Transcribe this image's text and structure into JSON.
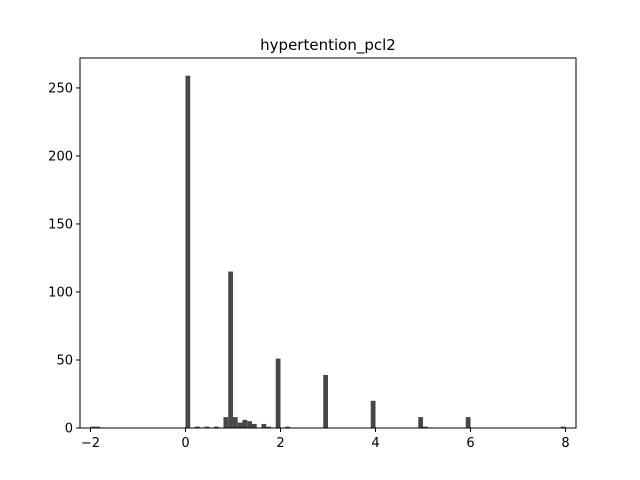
{
  "chart_data": {
    "type": "bar",
    "title": "hypertention_pcl2",
    "xlabel": "",
    "ylabel": "",
    "xlim": [
      -2.22,
      8.22
    ],
    "ylim": [
      0,
      272
    ],
    "xticks": [
      -2,
      0,
      2,
      4,
      6,
      8
    ],
    "yticks": [
      0,
      50,
      100,
      150,
      200,
      250
    ],
    "bar_color": "#474747",
    "bin_width": 0.1,
    "bars": [
      {
        "x": -2.0,
        "value": 1
      },
      {
        "x": -1.9,
        "value": 1
      },
      {
        "x": 0.0,
        "value": 259
      },
      {
        "x": 0.2,
        "value": 1
      },
      {
        "x": 0.4,
        "value": 1
      },
      {
        "x": 0.6,
        "value": 1
      },
      {
        "x": 0.8,
        "value": 8
      },
      {
        "x": 0.9,
        "value": 115
      },
      {
        "x": 1.0,
        "value": 8
      },
      {
        "x": 1.1,
        "value": 4
      },
      {
        "x": 1.2,
        "value": 6
      },
      {
        "x": 1.3,
        "value": 5
      },
      {
        "x": 1.4,
        "value": 3
      },
      {
        "x": 1.6,
        "value": 3
      },
      {
        "x": 1.7,
        "value": 1
      },
      {
        "x": 1.9,
        "value": 51
      },
      {
        "x": 2.1,
        "value": 1
      },
      {
        "x": 2.9,
        "value": 39
      },
      {
        "x": 3.9,
        "value": 20
      },
      {
        "x": 4.9,
        "value": 8
      },
      {
        "x": 5.0,
        "value": 1
      },
      {
        "x": 5.9,
        "value": 8
      },
      {
        "x": 7.9,
        "value": 1
      }
    ]
  }
}
